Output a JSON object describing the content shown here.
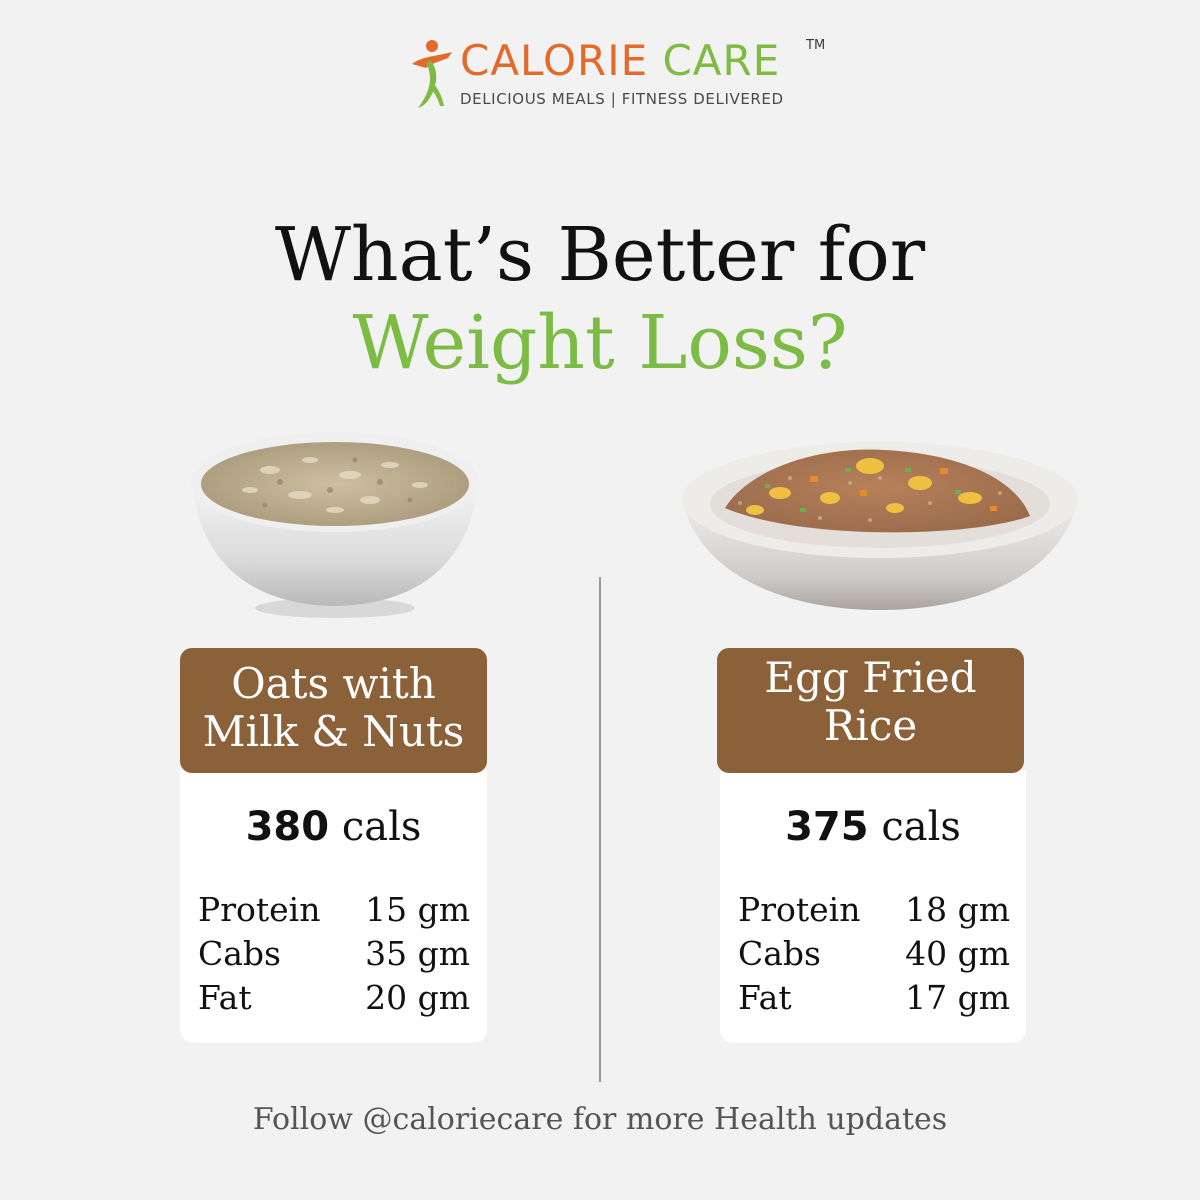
{
  "brand": {
    "name_part1": "CALORIE",
    "name_part2": "CARE",
    "trademark": "TM",
    "tagline": "DELICIOUS MEALS | FITNESS DELIVERED",
    "colors": {
      "orange": "#e46a2c",
      "green": "#7dbb42"
    },
    "logo_icon": "runner-figure-icon"
  },
  "heading": {
    "line1": "What’s Better for",
    "line2": "Weight Loss?",
    "line2_color": "#7cbc44"
  },
  "items": [
    {
      "name_line1": "Oats with",
      "name_line2": "Milk & Nuts",
      "calories_value": "380",
      "calories_unit": "cals",
      "image_icon": "oats-bowl-icon",
      "nutrients": [
        {
          "label": "Protein",
          "value": "15 gm"
        },
        {
          "label": "Cabs",
          "value": "35 gm"
        },
        {
          "label": "Fat",
          "value": "20 gm"
        }
      ]
    },
    {
      "name_line1": "Egg Fried",
      "name_line2": "Rice",
      "calories_value": "375",
      "calories_unit": "cals",
      "image_icon": "fried-rice-bowl-icon",
      "nutrients": [
        {
          "label": "Protein",
          "value": "18 gm"
        },
        {
          "label": "Cabs",
          "value": "40 gm"
        },
        {
          "label": "Fat",
          "value": "17 gm"
        }
      ]
    }
  ],
  "footer": "Follow @caloriecare for more Health updates",
  "label_color": "#8b6139"
}
